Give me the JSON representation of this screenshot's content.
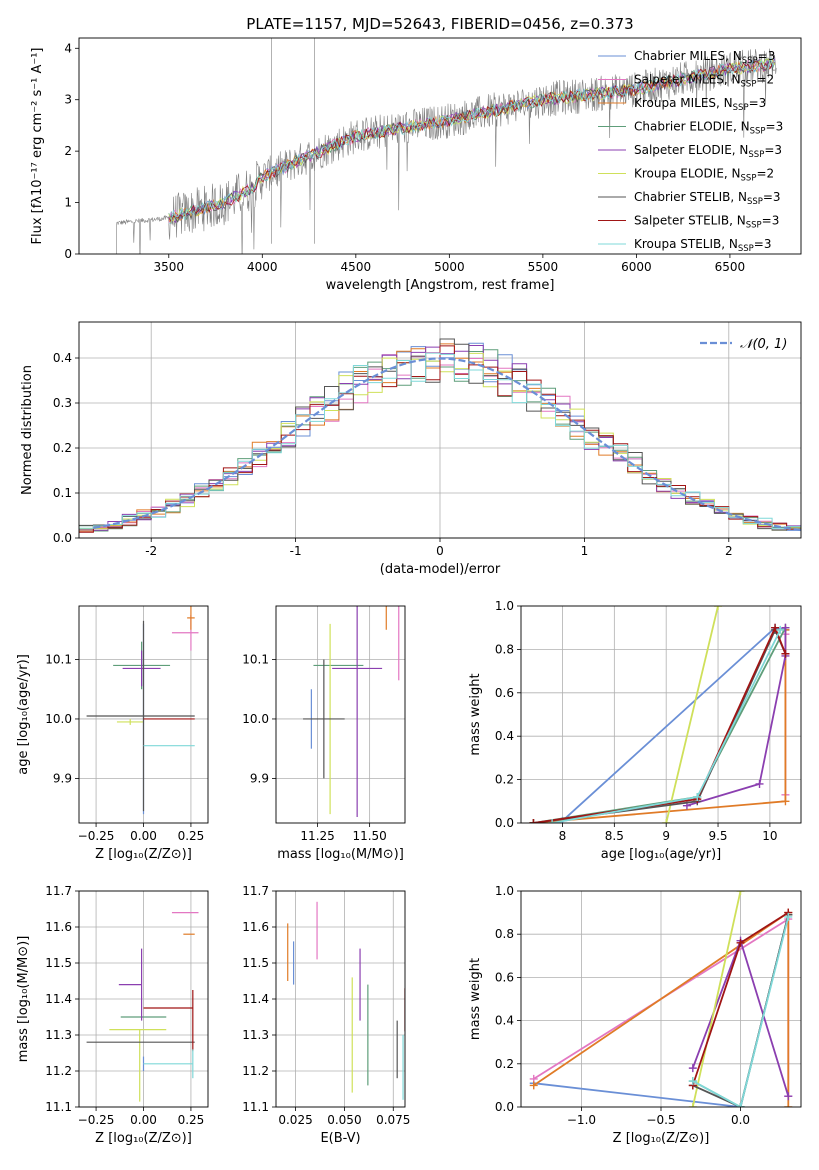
{
  "figure_title": "PLATE=1157, MJD=52643, FIBERID=0456, z=0.373",
  "colors": {
    "Chabrier MILES": "#6a8fd6",
    "Salpeter MILES": "#e377c2",
    "Kroupa MILES": "#e07b27",
    "Chabrier ELODIE": "#5f9e7a",
    "Salpeter ELODIE": "#8b3fb0",
    "Kroupa ELODIE": "#cfe05a",
    "Chabrier STELIB": "#555555",
    "Salpeter STELIB": "#a01515",
    "Kroupa STELIB": "#7fd8d8"
  },
  "chart_data": [
    {
      "id": "spectrum",
      "type": "line",
      "xlabel": "wavelength [Angstrom, rest frame]",
      "ylabel": "Flux [fλ10⁻¹⁷ erg cm⁻² s⁻¹ A⁻¹]",
      "xlim": [
        3020,
        6880
      ],
      "ylim": [
        0,
        4.2
      ],
      "xticks": [
        3500,
        4000,
        4500,
        5000,
        5500,
        6000,
        6500
      ],
      "yticks": [
        0,
        1,
        2,
        3,
        4
      ],
      "legend_position": "top-right",
      "legend": [
        {
          "label": "Chabrier MILES, N",
          "sub": "SSP",
          "suffix": "=3"
        },
        {
          "label": "Salpeter MILES, N",
          "sub": "SSP",
          "suffix": "=2"
        },
        {
          "label": "Kroupa MILES, N",
          "sub": "SSP",
          "suffix": "=3"
        },
        {
          "label": "Chabrier ELODIE, N",
          "sub": "SSP",
          "suffix": "=3"
        },
        {
          "label": "Salpeter ELODIE, N",
          "sub": "SSP",
          "suffix": "=3"
        },
        {
          "label": "Kroupa ELODIE, N",
          "sub": "SSP",
          "suffix": "=2"
        },
        {
          "label": "Chabrier STELIB, N",
          "sub": "SSP",
          "suffix": "=3"
        },
        {
          "label": "Salpeter STELIB, N",
          "sub": "SSP",
          "suffix": "=3"
        },
        {
          "label": "Kroupa STELIB, N",
          "sub": "SSP",
          "suffix": "=3"
        }
      ],
      "data_trend": {
        "x": [
          3220,
          3500,
          3800,
          3950,
          4000,
          4500,
          5000,
          5500,
          6000,
          6500,
          6750
        ],
        "y": [
          0.6,
          0.7,
          1.0,
          1.3,
          1.5,
          2.3,
          2.6,
          3.0,
          3.2,
          3.6,
          3.7
        ]
      }
    },
    {
      "id": "residuals",
      "type": "histogram",
      "xlabel": "(data-model)/error",
      "ylabel": "Normed distribution",
      "xlim": [
        -2.5,
        2.5
      ],
      "ylim": [
        0,
        0.48
      ],
      "xticks": [
        -2,
        -1,
        0,
        1,
        2
      ],
      "yticks": [
        0.0,
        0.1,
        0.2,
        0.3,
        0.4
      ],
      "grid": true,
      "legend_position": "top-right",
      "legend_label": "𝒩(0, 1)",
      "gaussian": {
        "mean": 0,
        "sigma": 1
      }
    },
    {
      "id": "age-vs-Z",
      "type": "errorbar",
      "xlabel": "Z [log₁₀(Z/Z⊙)]",
      "ylabel": "age  [log₁₀(age/yr)]",
      "xlim": [
        -0.34,
        0.34
      ],
      "ylim": [
        9.825,
        10.19
      ],
      "xticks": [
        -0.25,
        0.0,
        0.25
      ],
      "xticklabels": [
        "−0.25",
        "0.00",
        "0.25"
      ],
      "yticks": [
        9.9,
        10.0,
        10.1
      ],
      "grid": true,
      "points": [
        {
          "model": "Chabrier MILES",
          "x": 0.0,
          "xerr": [
            0.0,
            0.0
          ],
          "y": 10.0,
          "yerr": [
            0.16,
            0.16
          ]
        },
        {
          "model": "Salpeter MILES",
          "x": 0.25,
          "xerr": [
            0.1,
            0.04
          ],
          "y": 10.145,
          "yerr": [
            0.03,
            0.03
          ]
        },
        {
          "model": "Kroupa MILES",
          "x": 0.25,
          "xerr": [
            0.02,
            0.02
          ],
          "y": 10.17,
          "yerr": [
            0.02,
            0.02
          ]
        },
        {
          "model": "Chabrier ELODIE",
          "x": -0.01,
          "xerr": [
            0.15,
            0.15
          ],
          "y": 10.09,
          "yerr": [
            0.04,
            0.04
          ]
        },
        {
          "model": "Salpeter ELODIE",
          "x": -0.01,
          "xerr": [
            0.1,
            0.1
          ],
          "y": 10.085,
          "yerr": [
            0.03,
            0.03
          ]
        },
        {
          "model": "Kroupa ELODIE",
          "x": -0.07,
          "xerr": [
            0.07,
            0.07
          ],
          "y": 9.995,
          "yerr": [
            0.005,
            0.005
          ]
        },
        {
          "model": "Chabrier STELIB",
          "x": 0.0,
          "xerr": [
            0.3,
            0.27
          ],
          "y": 10.005,
          "yerr": [
            0.16,
            0.16
          ]
        },
        {
          "model": "Salpeter STELIB",
          "x": 0.0,
          "xerr": [
            0.0,
            0.27
          ],
          "y": 10.0,
          "yerr": [
            0.0,
            0.0
          ]
        },
        {
          "model": "Kroupa STELIB",
          "x": 0.0,
          "xerr": [
            0.0,
            0.27
          ],
          "y": 9.955,
          "yerr": [
            0.0,
            0.0
          ]
        }
      ]
    },
    {
      "id": "age-vs-mass",
      "type": "errorbar",
      "xlabel": "mass [log₁₀(M/M⊙)]",
      "ylabel": "",
      "xlim": [
        11.05,
        11.67
      ],
      "ylim": [
        9.825,
        10.19
      ],
      "xticks": [
        11.25,
        11.5
      ],
      "xticklabels": [
        "11.25",
        "11.50"
      ],
      "yticks": [
        9.9,
        10.0,
        10.1
      ],
      "grid": true,
      "points": [
        {
          "model": "Chabrier MILES",
          "x": 11.22,
          "xerr": [
            0.0,
            0.0
          ],
          "y": 10.0,
          "yerr": [
            0.05,
            0.05
          ]
        },
        {
          "model": "Salpeter MILES",
          "x": 11.64,
          "xerr": [
            0.0,
            0.0
          ],
          "y": 10.145,
          "yerr": [
            0.08,
            0.08
          ]
        },
        {
          "model": "Kroupa MILES",
          "x": 11.58,
          "xerr": [
            0.0,
            0.0
          ],
          "y": 10.17,
          "yerr": [
            0.02,
            0.02
          ]
        },
        {
          "model": "Chabrier ELODIE",
          "x": 11.35,
          "xerr": [
            0.12,
            0.12
          ],
          "y": 10.09,
          "yerr": [
            0.0,
            0.0
          ]
        },
        {
          "model": "Salpeter ELODIE",
          "x": 11.44,
          "xerr": [
            0.12,
            0.12
          ],
          "y": 10.085,
          "yerr": [
            0.25,
            0.25
          ]
        },
        {
          "model": "Kroupa ELODIE",
          "x": 11.31,
          "xerr": [
            0.0,
            0.0
          ],
          "y": 10.0,
          "yerr": [
            0.16,
            0.16
          ]
        },
        {
          "model": "Chabrier STELIB",
          "x": 11.28,
          "xerr": [
            0.1,
            0.1
          ],
          "y": 10.0,
          "yerr": [
            0.1,
            0.1
          ]
        },
        {
          "model": "Salpeter STELIB",
          "x": 11.38,
          "xerr": [
            0.0,
            0.0
          ],
          "y": 10.0,
          "yerr": [
            0.0,
            0.0
          ]
        },
        {
          "model": "Kroupa STELIB",
          "x": 11.12,
          "xerr": [
            0.0,
            0.0
          ],
          "y": 9.955,
          "yerr": [
            0.0,
            0.0
          ]
        }
      ]
    },
    {
      "id": "mass-weight-vs-age",
      "type": "line",
      "xlabel": "age  [log₁₀(age/yr)]",
      "ylabel": "mass weight",
      "xlim": [
        7.6,
        10.3
      ],
      "ylim": [
        0,
        1
      ],
      "xticks": [
        8.0,
        8.5,
        9.0,
        9.5,
        10.0
      ],
      "yticks": [
        0.0,
        0.2,
        0.4,
        0.6,
        0.8,
        1.0
      ],
      "grid": true,
      "series": [
        {
          "model": "Chabrier MILES",
          "x": [
            8.0,
            10.05,
            10.15
          ],
          "y": [
            0.01,
            0.9,
            0.89
          ]
        },
        {
          "model": "Salpeter MILES",
          "x": [
            10.15,
            10.15
          ],
          "y": [
            0.87,
            0.13
          ]
        },
        {
          "model": "Kroupa MILES",
          "x": [
            7.72,
            10.15,
            10.15
          ],
          "y": [
            0.0,
            0.1,
            0.89
          ]
        },
        {
          "model": "Chabrier ELODIE",
          "x": [
            7.72,
            9.3,
            10.15
          ],
          "y": [
            0.0,
            0.12,
            0.9
          ]
        },
        {
          "model": "Salpeter ELODIE",
          "x": [
            9.2,
            9.9,
            10.15,
            10.15
          ],
          "y": [
            0.08,
            0.18,
            0.77,
            0.9
          ]
        },
        {
          "model": "Kroupa ELODIE",
          "x": [
            9.0,
            9.5
          ],
          "y": [
            0.0,
            1.0
          ]
        },
        {
          "model": "Chabrier STELIB",
          "x": [
            7.72,
            9.3,
            10.05,
            10.15
          ],
          "y": [
            0.0,
            0.1,
            0.89,
            0.78
          ]
        },
        {
          "model": "Salpeter STELIB",
          "x": [
            7.72,
            9.3,
            10.05,
            10.15
          ],
          "y": [
            0.0,
            0.11,
            0.9,
            0.78
          ]
        },
        {
          "model": "Kroupa STELIB",
          "x": [
            7.9,
            9.3,
            10.1
          ],
          "y": [
            0.0,
            0.12,
            0.89
          ]
        }
      ]
    },
    {
      "id": "mass-vs-Z",
      "type": "errorbar",
      "xlabel": "Z [log₁₀(Z/Z⊙)]",
      "ylabel": "mass [log₁₀(M/M⊙)]",
      "xlim": [
        -0.34,
        0.34
      ],
      "ylim": [
        11.1,
        11.7
      ],
      "xticks": [
        -0.25,
        0.0,
        0.25
      ],
      "xticklabels": [
        "−0.25",
        "0.00",
        "0.25"
      ],
      "yticks": [
        11.1,
        11.2,
        11.3,
        11.4,
        11.5,
        11.6,
        11.7
      ],
      "grid": true,
      "points": [
        {
          "model": "Chabrier MILES",
          "x": 0.0,
          "xerr": [
            0.0,
            0.0
          ],
          "y": 11.22,
          "yerr": [
            0.02,
            0.02
          ]
        },
        {
          "model": "Salpeter MILES",
          "x": 0.25,
          "xerr": [
            0.1,
            0.04
          ],
          "y": 11.64,
          "yerr": [
            0.0,
            0.0
          ]
        },
        {
          "model": "Kroupa MILES",
          "x": 0.25,
          "xerr": [
            0.04,
            0.02
          ],
          "y": 11.58,
          "yerr": [
            0.0,
            0.0
          ]
        },
        {
          "model": "Chabrier ELODIE",
          "x": 0.0,
          "xerr": [
            0.12,
            0.12
          ],
          "y": 11.35,
          "yerr": [
            0.0,
            0.0
          ]
        },
        {
          "model": "Salpeter ELODIE",
          "x": -0.01,
          "xerr": [
            0.12,
            0.0
          ],
          "y": 11.44,
          "yerr": [
            0.1,
            0.1
          ]
        },
        {
          "model": "Kroupa ELODIE",
          "x": -0.02,
          "xerr": [
            0.16,
            0.14
          ],
          "y": 11.315,
          "yerr": [
            0.2,
            0.0
          ]
        },
        {
          "model": "Chabrier STELIB",
          "x": 0.0,
          "xerr": [
            0.3,
            0.27
          ],
          "y": 11.28,
          "yerr": [
            0.0,
            0.0
          ]
        },
        {
          "model": "Salpeter STELIB",
          "x": 0.26,
          "xerr": [
            0.26,
            0.0
          ],
          "y": 11.375,
          "yerr": [
            0.12,
            0.05
          ]
        },
        {
          "model": "Kroupa STELIB",
          "x": 0.26,
          "xerr": [
            0.26,
            0.0
          ],
          "y": 11.22,
          "yerr": [
            0.04,
            0.04
          ]
        }
      ]
    },
    {
      "id": "mass-vs-ebv",
      "type": "errorbar",
      "xlabel": "E(B-V)",
      "ylabel": "",
      "xlim": [
        0.015,
        0.081
      ],
      "ylim": [
        11.1,
        11.7
      ],
      "xticks": [
        0.025,
        0.05,
        0.075
      ],
      "xticklabels": [
        "0.025",
        "0.050",
        "0.075"
      ],
      "yticks": [
        11.1,
        11.2,
        11.3,
        11.4,
        11.5,
        11.6,
        11.7
      ],
      "grid": true,
      "points": [
        {
          "model": "Chabrier MILES",
          "x": 0.024,
          "xerr": [
            0.0,
            0.0
          ],
          "y": 11.5,
          "yerr": [
            0.06,
            0.06
          ]
        },
        {
          "model": "Salpeter MILES",
          "x": 0.036,
          "xerr": [
            0.0,
            0.0
          ],
          "y": 11.59,
          "yerr": [
            0.08,
            0.08
          ]
        },
        {
          "model": "Kroupa MILES",
          "x": 0.021,
          "xerr": [
            0.0,
            0.0
          ],
          "y": 11.53,
          "yerr": [
            0.08,
            0.08
          ]
        },
        {
          "model": "Chabrier ELODIE",
          "x": 0.062,
          "xerr": [
            0.0,
            0.0
          ],
          "y": 11.3,
          "yerr": [
            0.14,
            0.14
          ]
        },
        {
          "model": "Salpeter ELODIE",
          "x": 0.058,
          "xerr": [
            0.0,
            0.0
          ],
          "y": 11.44,
          "yerr": [
            0.1,
            0.1
          ]
        },
        {
          "model": "Kroupa ELODIE",
          "x": 0.054,
          "xerr": [
            0.0,
            0.0
          ],
          "y": 11.3,
          "yerr": [
            0.16,
            0.16
          ]
        },
        {
          "model": "Chabrier STELIB",
          "x": 0.077,
          "xerr": [
            0.0,
            0.0
          ],
          "y": 11.26,
          "yerr": [
            0.08,
            0.08
          ]
        },
        {
          "model": "Salpeter STELIB",
          "x": 0.081,
          "xerr": [
            0.0,
            0.0
          ],
          "y": 11.37,
          "yerr": [
            0.06,
            0.06
          ]
        },
        {
          "model": "Kroupa STELIB",
          "x": 0.08,
          "xerr": [
            0.0,
            0.0
          ],
          "y": 11.21,
          "yerr": [
            0.09,
            0.09
          ]
        }
      ]
    },
    {
      "id": "mass-weight-vs-Z",
      "type": "line",
      "xlabel": "Z [log₁₀(Z/Z⊙)]",
      "ylabel": "mass weight",
      "xlim": [
        -1.38,
        0.38
      ],
      "ylim": [
        0,
        1
      ],
      "xticks": [
        -1.0,
        -0.5,
        0.0
      ],
      "xticklabels": [
        "−1.0",
        "−0.5",
        "0.0"
      ],
      "yticks": [
        0.0,
        0.2,
        0.4,
        0.6,
        0.8,
        1.0
      ],
      "grid": true,
      "series": [
        {
          "model": "Chabrier MILES",
          "x": [
            -1.3,
            0.0,
            0.3
          ],
          "y": [
            0.11,
            0.0,
            0.89
          ]
        },
        {
          "model": "Salpeter MILES",
          "x": [
            -1.3,
            0.3,
            0.3
          ],
          "y": [
            0.13,
            0.87,
            0.05
          ]
        },
        {
          "model": "Kroupa MILES",
          "x": [
            -1.3,
            0.3,
            0.3
          ],
          "y": [
            0.1,
            0.9,
            0.0
          ]
        },
        {
          "model": "Chabrier ELODIE",
          "x": [
            -0.3,
            0.0,
            0.3
          ],
          "y": [
            0.12,
            0.0,
            0.89
          ]
        },
        {
          "model": "Salpeter ELODIE",
          "x": [
            -0.3,
            0.0,
            0.3
          ],
          "y": [
            0.18,
            0.77,
            0.05
          ]
        },
        {
          "model": "Kroupa ELODIE",
          "x": [
            -0.3,
            0.0
          ],
          "y": [
            0.0,
            1.0
          ]
        },
        {
          "model": "Chabrier STELIB",
          "x": [
            -0.3,
            0.0,
            0.3
          ],
          "y": [
            0.1,
            0.0,
            0.89
          ]
        },
        {
          "model": "Salpeter STELIB",
          "x": [
            -0.3,
            0.0,
            0.3
          ],
          "y": [
            0.1,
            0.76,
            0.9
          ]
        },
        {
          "model": "Kroupa STELIB",
          "x": [
            -0.3,
            0.0,
            0.3
          ],
          "y": [
            0.12,
            0.0,
            0.88
          ]
        }
      ]
    }
  ]
}
